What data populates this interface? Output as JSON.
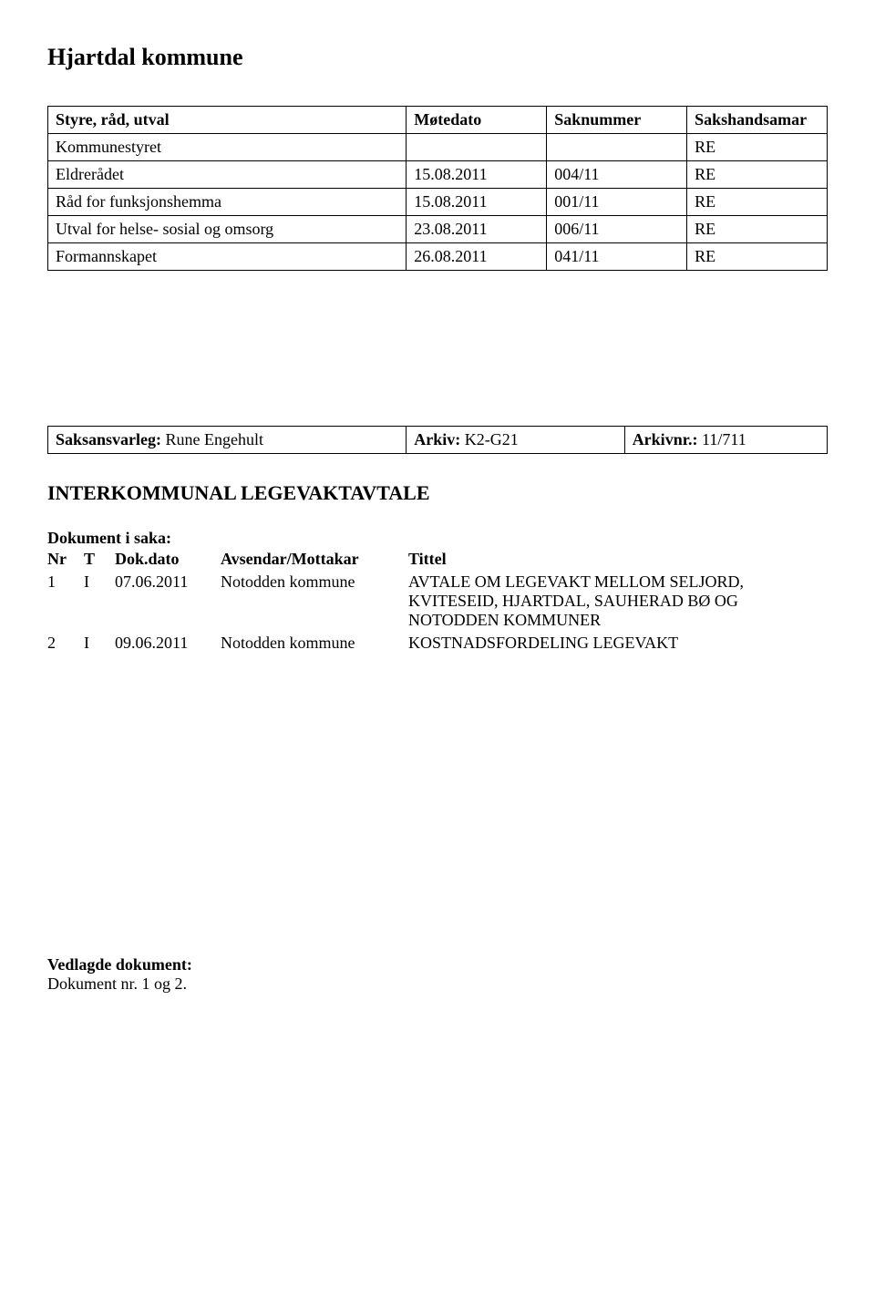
{
  "title": "Hjartdal kommune",
  "meeting_table": {
    "columns": [
      "Styre, råd, utval",
      "Møtedato",
      "Saknummer",
      "Sakshandsamar"
    ],
    "rows": [
      {
        "body": "Kommunestyret",
        "date": "",
        "saknr": "",
        "handler": "RE"
      },
      {
        "body": "Eldrerådet",
        "date": "15.08.2011",
        "saknr": "004/11",
        "handler": "RE"
      },
      {
        "body": "Råd for funksjonshemma",
        "date": "15.08.2011",
        "saknr": "001/11",
        "handler": "RE"
      },
      {
        "body": "Utval for helse- sosial og omsorg",
        "date": "23.08.2011",
        "saknr": "006/11",
        "handler": "RE"
      },
      {
        "body": "Formannskapet",
        "date": "26.08.2011",
        "saknr": "041/11",
        "handler": "RE"
      }
    ]
  },
  "saksansvar": {
    "label": "Saksansvarleg:",
    "value": "Rune Engehult",
    "arkiv_label": "Arkiv:",
    "arkiv_value": "K2-G21",
    "arkivnr_label": "Arkivnr.:",
    "arkivnr_value": "11/711"
  },
  "case_title": "INTERKOMMUNAL LEGEVAKTAVTALE",
  "doc_list": {
    "heading": "Dokument i saka:",
    "columns": {
      "nr": "Nr",
      "t": "T",
      "date": "Dok.dato",
      "sender": "Avsendar/Mottakar",
      "title": "Tittel"
    },
    "rows": [
      {
        "nr": "1",
        "t": "I",
        "date": "07.06.2011",
        "sender": "Notodden kommune",
        "title": "AVTALE OM LEGEVAKT MELLOM SELJORD, KVITESEID, HJARTDAL, SAUHERAD BØ OG NOTODDEN KOMMUNER"
      },
      {
        "nr": "2",
        "t": "I",
        "date": "09.06.2011",
        "sender": "Notodden kommune",
        "title": "KOSTNADSFORDELING LEGEVAKT"
      }
    ]
  },
  "attachments": {
    "label": "Vedlagde dokument:",
    "text": "Dokument nr. 1 og 2."
  }
}
